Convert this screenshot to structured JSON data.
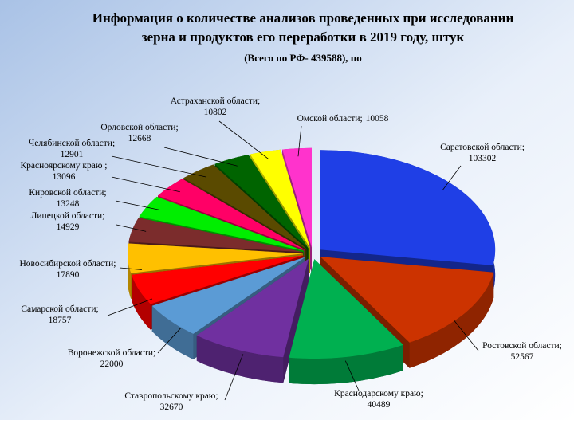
{
  "chart_data": {
    "type": "pie",
    "title": [
      "Информация о количестве анализов проведенных при исследовании",
      "зерна и продуктов его переработки в 2019 году,  штук"
    ],
    "subtitle": "(Всего по РФ- 439588), по",
    "categories": [
      "Саратовской области;",
      "Ростовской области;",
      "Краснодарскому краю;",
      "Ставропольскому краю;",
      "Воронежской области;",
      "Самарской области;",
      "Новосибирской области;",
      "Липецкой области;",
      "Кировской области;",
      "Красноярскому краю ;",
      "Челябинской области;",
      "Орловской области;",
      "Астраханской области;",
      "Омской области;"
    ],
    "values": [
      103302,
      52567,
      40489,
      32670,
      22000,
      18757,
      17890,
      14929,
      13248,
      13096,
      12901,
      12668,
      10802,
      10058
    ],
    "colors": [
      "#1f3fe6",
      "#cc3300",
      "#00b050",
      "#7030a0",
      "#5b9bd5",
      "#ff0000",
      "#ffc000",
      "#7b2c2c",
      "#00ee00",
      "#ff0066",
      "#5a4a00",
      "#006400",
      "#ffff00",
      "#ff33cc"
    ]
  }
}
